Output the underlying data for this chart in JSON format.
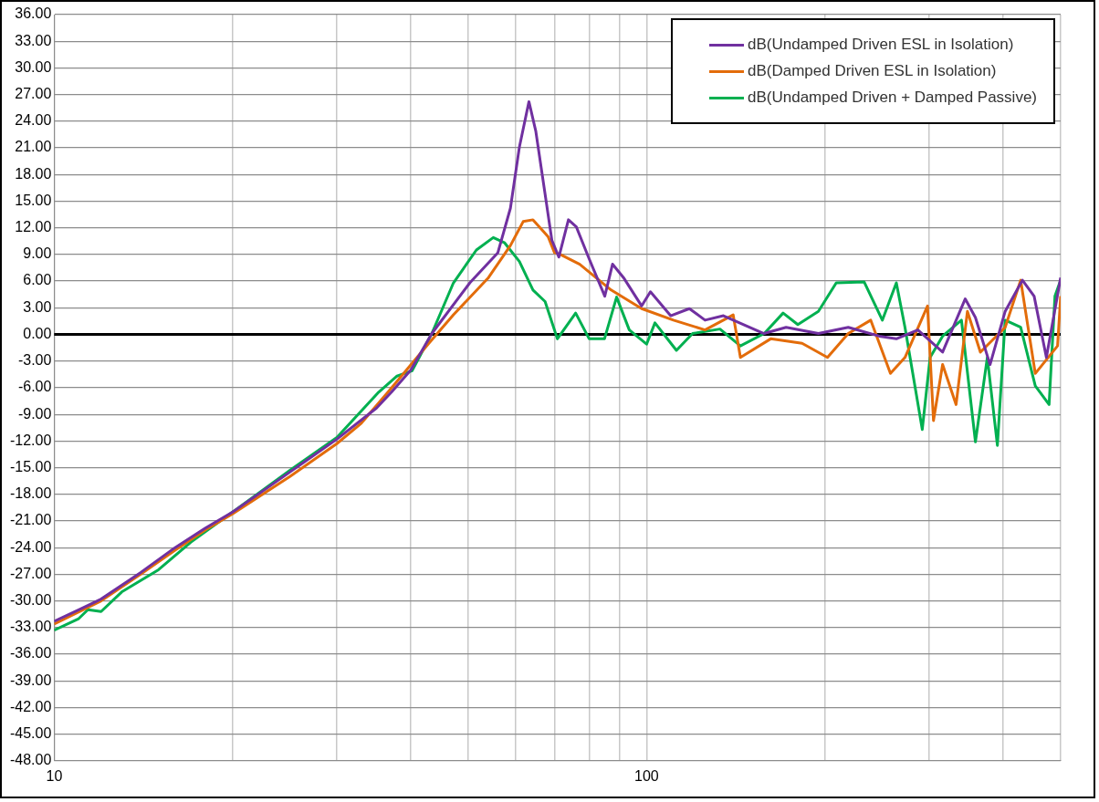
{
  "chart_data": {
    "type": "line",
    "log": "x",
    "grid": true,
    "legend": "top right",
    "marker": "none",
    "line_style": "solid",
    "xlim": [
      10,
      500
    ],
    "xticks": [
      10,
      {
        "value": 20,
        "label": null
      },
      {
        "value": 30,
        "label": null
      },
      {
        "value": 40,
        "label": null
      },
      {
        "value": 50,
        "label": null
      },
      {
        "value": 60,
        "label": null
      },
      {
        "value": 70,
        "label": null
      },
      {
        "value": 80,
        "label": null
      },
      {
        "value": 90,
        "label": null
      },
      100,
      {
        "value": 200,
        "label": null
      },
      {
        "value": 300,
        "label": null
      },
      {
        "value": 400,
        "label": null
      },
      {
        "value": 500,
        "label": null
      }
    ],
    "ylim": [
      -48,
      36
    ],
    "yticks": [
      {
        "value": -48,
        "label": "-48.00"
      },
      {
        "value": -45,
        "label": "-45.00"
      },
      {
        "value": -42,
        "label": "-42.00"
      },
      {
        "value": -39,
        "label": "-39.00"
      },
      {
        "value": -36,
        "label": "-36.00"
      },
      {
        "value": -33,
        "label": "-33.00"
      },
      {
        "value": -30,
        "label": "-30.00"
      },
      {
        "value": -27,
        "label": "-27.00"
      },
      {
        "value": -24,
        "label": "-24.00"
      },
      {
        "value": -21,
        "label": "-21.00"
      },
      {
        "value": -18,
        "label": "-18.00"
      },
      {
        "value": -15,
        "label": "-15.00"
      },
      {
        "value": -12,
        "label": "-12.00"
      },
      {
        "value": -9,
        "label": "-9.00"
      },
      {
        "value": -6,
        "label": "-6.00"
      },
      {
        "value": -3,
        "label": "-3.00"
      },
      {
        "value": 0,
        "label": "0.00"
      },
      {
        "value": 3,
        "label": "3.00"
      },
      {
        "value": 6,
        "label": "6.00"
      },
      {
        "value": 9,
        "label": "9.00"
      },
      {
        "value": 12,
        "label": "12.00"
      },
      {
        "value": 15,
        "label": "15.00"
      },
      {
        "value": 18,
        "label": "18.00"
      },
      {
        "value": 21,
        "label": "21.00"
      },
      {
        "value": 24,
        "label": "24.00"
      },
      {
        "value": 27,
        "label": "27.00"
      },
      {
        "value": 30,
        "label": "30.00"
      },
      {
        "value": 33,
        "label": "33.00"
      },
      {
        "value": 36,
        "label": "36.00"
      }
    ],
    "ref_lines": [
      {
        "axis": "y",
        "value": 0,
        "color": "#000000"
      }
    ],
    "series": [
      {
        "name": "dB(Undamped Driven ESL in Isolation)",
        "color": "#7030a0",
        "x": [
          10,
          11,
          12,
          14,
          16,
          18,
          20,
          25,
          30,
          35,
          37.1,
          40,
          43.4,
          50.3,
          56.1,
          58.9,
          61,
          63.3,
          65,
          67.4,
          69.2,
          71.1,
          73.8,
          76.1,
          80,
          85,
          87.6,
          91.4,
          98.1,
          101.5,
          109.8,
          118.1,
          125.5,
          134.8,
          157.8,
          172,
          195,
          219,
          247,
          264,
          287,
          316,
          345,
          359,
          380,
          403,
          431,
          451,
          473,
          500
        ],
        "values": [
          -32.3,
          -31,
          -29.8,
          -26.8,
          -24,
          -21.8,
          -20,
          -15.5,
          -11.8,
          -8.3,
          -6.5,
          -4,
          0.1,
          5.8,
          9.2,
          14.2,
          21.1,
          26.2,
          22.9,
          15.8,
          10.6,
          8.7,
          12.9,
          12.1,
          8.5,
          4.3,
          7.9,
          6.4,
          3.2,
          4.8,
          2.1,
          2.9,
          1.6,
          2.1,
          0.1,
          0.8,
          0.1,
          0.8,
          -0.2,
          -0.5,
          0.5,
          -2,
          4,
          1.9,
          -3.4,
          2.6,
          6.1,
          4.3,
          -2.6,
          6.4
        ]
      },
      {
        "name": "dB(Damped Driven ESL in Isolation)",
        "color": "#e36c0a",
        "x": [
          10,
          12,
          14,
          16,
          18,
          20,
          25,
          30,
          33,
          36.6,
          42.9,
          47.2,
          54.1,
          58.9,
          61.9,
          64.3,
          68.2,
          69.9,
          71.5,
          77.1,
          87.1,
          98.1,
          111,
          125.5,
          140,
          144,
          162,
          183,
          202,
          219,
          239,
          258,
          273,
          298,
          305,
          316,
          333,
          348,
          366,
          403,
          428,
          453,
          494,
          500
        ],
        "values": [
          -32.6,
          -30,
          -27,
          -24.3,
          -22,
          -20.2,
          -16,
          -12.3,
          -10,
          -6.5,
          -1,
          2.2,
          6.4,
          10,
          12.7,
          12.9,
          11,
          9.2,
          9,
          7.9,
          5,
          2.9,
          1.6,
          0.5,
          2.2,
          -2.6,
          -0.5,
          -1,
          -2.6,
          0.1,
          1.6,
          -4.4,
          -2.6,
          3.2,
          -9.7,
          -3.4,
          -7.9,
          2.6,
          -2,
          0.8,
          6.1,
          -4.4,
          -1.3,
          4.3
        ]
      },
      {
        "name": "dB(Undamped Driven + Damped Passive)",
        "color": "#00b050",
        "x": [
          10,
          11,
          11.4,
          12,
          13,
          15,
          17,
          20,
          25,
          30,
          35.3,
          37.9,
          40.2,
          43.4,
          47.2,
          51.6,
          55.1,
          57.6,
          61,
          64.3,
          67.4,
          70.7,
          75.9,
          80,
          84.9,
          89,
          93.5,
          100,
          103.3,
          112.3,
          119.6,
          133,
          144,
          158,
          170,
          180,
          195,
          209,
          233,
          250,
          264,
          273,
          292,
          301,
          316,
          340,
          359,
          376,
          391,
          403,
          428,
          453,
          478,
          489,
          500
        ],
        "values": [
          -33.3,
          -32,
          -31,
          -31.2,
          -29,
          -26.5,
          -23.4,
          -20,
          -15.3,
          -11.6,
          -6.5,
          -4.7,
          -4.1,
          0.1,
          5.8,
          9.5,
          10.9,
          10.3,
          8.2,
          5,
          3.7,
          -0.5,
          2.4,
          -0.5,
          -0.5,
          4.2,
          0.5,
          -1.1,
          1.3,
          -1.8,
          0.1,
          0.6,
          -1.3,
          0.1,
          2.4,
          1.1,
          2.6,
          5.8,
          5.9,
          1.6,
          5.8,
          0.8,
          -10.7,
          -2.6,
          -0.2,
          1.6,
          -12.1,
          -2.6,
          -12.5,
          1.6,
          0.8,
          -5.8,
          -7.9,
          4.3,
          6.1
        ]
      }
    ]
  }
}
